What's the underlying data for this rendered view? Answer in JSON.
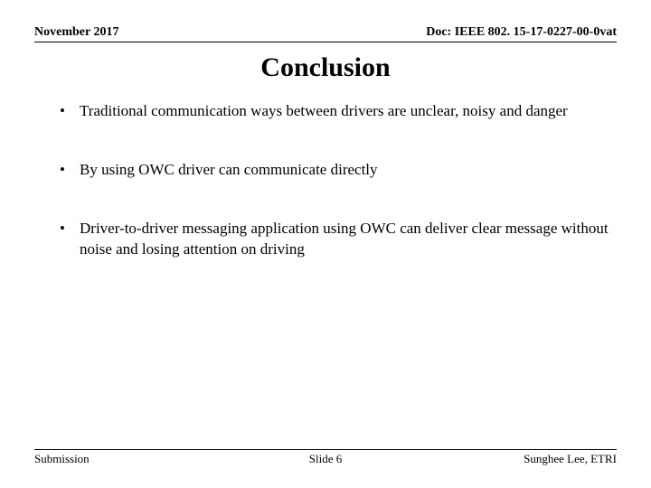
{
  "header": {
    "date": "November 2017",
    "doc": "Doc: IEEE 802. 15-17-0227-00-0vat"
  },
  "title": "Conclusion",
  "bullets": [
    "Traditional communication ways between drivers are unclear, noisy and danger",
    "By using OWC driver can communicate directly",
    "Driver-to-driver messaging application using OWC can deliver clear message without noise and losing attention on driving"
  ],
  "footer": {
    "left": "Submission",
    "center": "Slide 6",
    "right": "Sunghee Lee, ETRI"
  }
}
